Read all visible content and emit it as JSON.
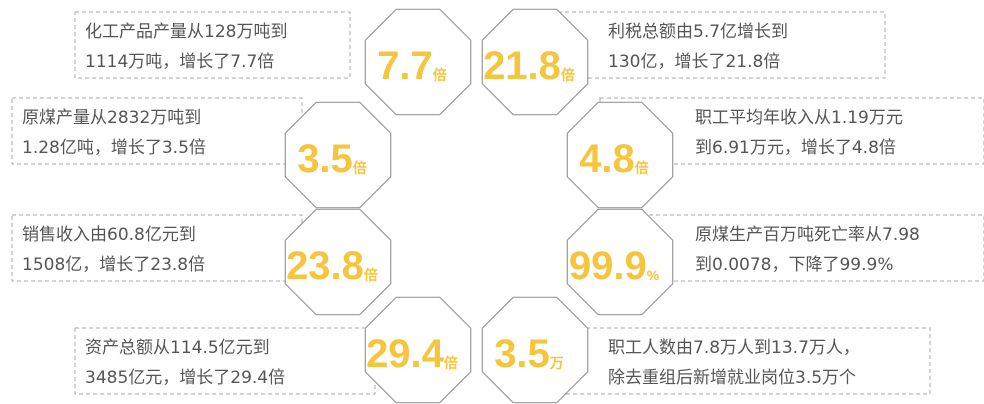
{
  "items": [
    {
      "lines": [
        "化工产品产量从128万吨到",
        "1114万吨，增长了7.7倍"
      ],
      "value": 7.7,
      "unit": "倍"
    },
    {
      "lines": [
        "利税总额由5.7亿增长到",
        "130亿，增长了21.8倍"
      ],
      "value": 21.8,
      "unit": "倍"
    },
    {
      "lines": [
        "原煤产量从2832万吨到",
        "1.28亿吨，增长了3.5倍"
      ],
      "value": 3.5,
      "unit": "倍"
    },
    {
      "lines": [
        "职工平均年收入从1.19万元",
        "到6.91万元，增长了4.8倍"
      ],
      "value": 4.8,
      "unit": "倍"
    },
    {
      "lines": [
        "销售收入由60.8亿元到",
        "1508亿，增长了23.8倍"
      ],
      "value": 23.8,
      "unit": "倍"
    },
    {
      "lines": [
        "原煤生产百万吨死亡率从7.98",
        "到0.0078，下降了99.9%"
      ],
      "value": 99.9,
      "unit": "%"
    },
    {
      "lines": [
        "资产总额从114.5亿元到",
        "3485亿元，增长了29.4倍"
      ],
      "value": 29.4,
      "unit": "倍"
    },
    {
      "lines": [
        "职工人数由7.8万人到13.7万人，",
        "除去重组后新增就业岗位3.5万个"
      ],
      "value": 3.5,
      "unit": "万"
    }
  ]
}
